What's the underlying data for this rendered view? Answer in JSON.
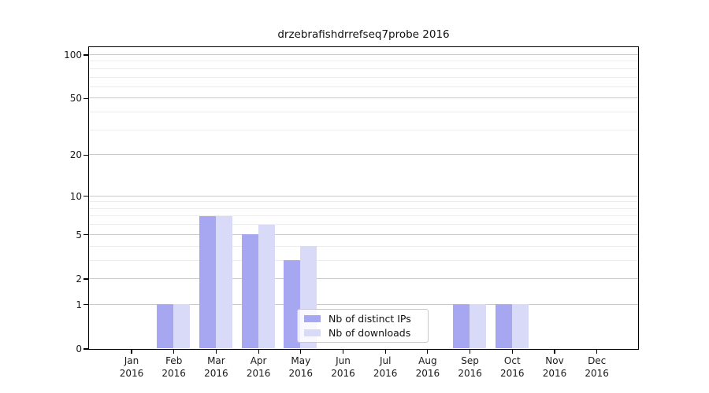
{
  "chart_data": {
    "type": "bar",
    "title": "drzebrafishdrrefseq7probe 2016",
    "x_axis": {
      "months": [
        "Jan",
        "Feb",
        "Mar",
        "Apr",
        "May",
        "Jun",
        "Jul",
        "Aug",
        "Sep",
        "Oct",
        "Nov",
        "Dec"
      ],
      "year": "2016"
    },
    "y_axis": {
      "scale": "log10(value+1)",
      "tick_values": [
        0,
        1,
        2,
        5,
        10,
        20,
        50,
        100
      ],
      "minor_gridline_values": [
        3,
        4,
        6,
        7,
        8,
        9,
        30,
        40,
        60,
        70,
        80,
        90
      ],
      "range": [
        0,
        113
      ]
    },
    "series": [
      {
        "name": "Nb of distinct IPs",
        "color": "#a6a6f1",
        "values": [
          0,
          1,
          7,
          5,
          3,
          0,
          0,
          0,
          1,
          1,
          0,
          0
        ]
      },
      {
        "name": "Nb of downloads",
        "color": "#d9d9f8",
        "values": [
          0,
          1,
          7,
          6,
          4,
          0,
          0,
          0,
          1,
          1,
          0,
          0
        ]
      }
    ],
    "legend": {
      "position": "lower-center",
      "entries": [
        "Nb of distinct IPs",
        "Nb of downloads"
      ]
    },
    "grid": "horizontal-major-and-minor"
  },
  "style": {
    "major_gridline_color": "#c9c9c9",
    "minor_gridline_color": "#ececec",
    "spine_color": "#000000",
    "background_color": "#ffffff",
    "text_color": "#1a1a1a"
  }
}
